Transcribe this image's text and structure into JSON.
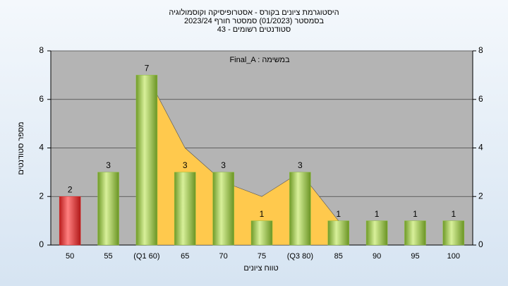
{
  "chart_data": {
    "type": "bar",
    "title": [
      "היסטוגרמת ציונים בקורס - אסטרופיסיקה וקוסמולוגיה",
      "בסמסטר  (01/2023)  סמסטר חורף 2023/24",
      "סטודנטים רשומים - 43"
    ],
    "annotation": "Final_A : במשימה",
    "x_label": "טווח ציונים",
    "y_label": "מספר סטודנטים",
    "categories": [
      "50",
      "55",
      "(Q1 60)",
      "65",
      "70",
      "75",
      "(Q3 80)",
      "85",
      "90",
      "95",
      "100"
    ],
    "values": [
      2,
      3,
      7,
      3,
      3,
      1,
      3,
      1,
      1,
      1,
      1
    ],
    "colors": [
      "#e03030",
      "#8cbf3a",
      "#8cbf3a",
      "#8cbf3a",
      "#8cbf3a",
      "#8cbf3a",
      "#8cbf3a",
      "#8cbf3a",
      "#8cbf3a",
      "#8cbf3a",
      "#8cbf3a"
    ],
    "area": {
      "color": "#ffc94d",
      "values": [
        null,
        null,
        7,
        4,
        2.6,
        2,
        3,
        1,
        null,
        null,
        null
      ]
    },
    "ylim": [
      0,
      8
    ],
    "yticks": [
      0,
      2,
      4,
      6,
      8
    ],
    "y2lim": [
      0,
      8
    ],
    "y2ticks": [
      0,
      2,
      4,
      6,
      8
    ],
    "grid": true
  }
}
